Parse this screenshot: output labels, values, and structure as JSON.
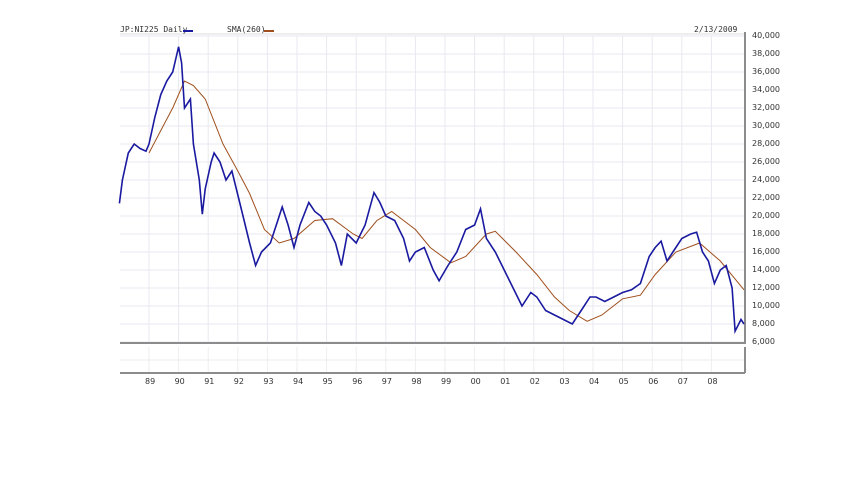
{
  "header": {
    "symbol_label": "JP:NI225 Daily",
    "sma_label": "SMA(260)",
    "date_label": "2/13/2009"
  },
  "colors": {
    "price_series": "#1a1aa0",
    "sma_series": "#a0501e",
    "grid": "#e6e6ee",
    "frame": "#8c8c8c"
  },
  "y_axis": {
    "labels": [
      "40,000",
      "38,000",
      "36,000",
      "34,000",
      "32,000",
      "30,000",
      "28,000",
      "26,000",
      "24,000",
      "22,000",
      "20,000",
      "18,000",
      "16,000",
      "14,000",
      "12,000",
      "10,000",
      "8,000",
      "6,000"
    ]
  },
  "x_axis": {
    "labels": [
      "89",
      "90",
      "91",
      "92",
      "93",
      "94",
      "95",
      "96",
      "97",
      "98",
      "99",
      "00",
      "01",
      "02",
      "03",
      "04",
      "05",
      "06",
      "07",
      "08"
    ]
  },
  "chart_data": {
    "type": "line",
    "title": "JP:NI225 Daily",
    "date": "2/13/2009",
    "xlabel": "",
    "ylabel": "",
    "ylim": [
      6000,
      40000
    ],
    "xlim": [
      1988.0,
      2009.1
    ],
    "grid": true,
    "legend_position": "top-left",
    "y_ticks": [
      6000,
      8000,
      10000,
      12000,
      14000,
      16000,
      18000,
      20000,
      22000,
      24000,
      26000,
      28000,
      30000,
      32000,
      34000,
      36000,
      38000,
      40000
    ],
    "x_tick_labels": [
      "89",
      "90",
      "91",
      "92",
      "93",
      "94",
      "95",
      "96",
      "97",
      "98",
      "99",
      "00",
      "01",
      "02",
      "03",
      "04",
      "05",
      "06",
      "07",
      "08"
    ],
    "series": [
      {
        "name": "JP:NI225 Daily",
        "color": "#1a1aa0",
        "x": [
          1988.0,
          1988.1,
          1988.3,
          1988.5,
          1988.7,
          1988.9,
          1989.0,
          1989.2,
          1989.4,
          1989.6,
          1989.8,
          1990.0,
          1990.1,
          1990.2,
          1990.4,
          1990.5,
          1990.7,
          1990.8,
          1990.9,
          1991.1,
          1991.2,
          1991.4,
          1991.6,
          1991.8,
          1992.1,
          1992.4,
          1992.6,
          1992.8,
          1993.1,
          1993.3,
          1993.5,
          1993.7,
          1993.9,
          1994.1,
          1994.4,
          1994.6,
          1994.8,
          1995.0,
          1995.3,
          1995.5,
          1995.7,
          1996.0,
          1996.3,
          1996.6,
          1996.8,
          1997.0,
          1997.3,
          1997.6,
          1997.8,
          1998.0,
          1998.3,
          1998.6,
          1998.8,
          1999.1,
          1999.4,
          1999.7,
          2000.0,
          2000.2,
          2000.4,
          2000.7,
          2001.0,
          2001.3,
          2001.6,
          2001.9,
          2002.1,
          2002.4,
          2002.7,
          2003.0,
          2003.3,
          2003.6,
          2003.9,
          2004.1,
          2004.4,
          2004.7,
          2005.0,
          2005.3,
          2005.6,
          2005.9,
          2006.1,
          2006.3,
          2006.5,
          2006.7,
          2007.0,
          2007.3,
          2007.5,
          2007.7,
          2007.9,
          2008.1,
          2008.3,
          2008.5,
          2008.7,
          2008.8,
          2009.0,
          2009.1
        ],
        "values": [
          21400,
          24000,
          27000,
          28000,
          27500,
          27200,
          28000,
          31000,
          33500,
          35000,
          36000,
          38800,
          37000,
          32000,
          33000,
          28000,
          24000,
          20200,
          23000,
          26000,
          27000,
          26000,
          24000,
          25000,
          21000,
          17000,
          14500,
          16000,
          17000,
          19000,
          21000,
          19000,
          16500,
          19000,
          21500,
          20500,
          20000,
          19000,
          17000,
          14500,
          18000,
          17000,
          19000,
          22600,
          21500,
          20000,
          19500,
          17500,
          15000,
          16000,
          16500,
          14000,
          12800,
          14500,
          16000,
          18500,
          19000,
          20800,
          17500,
          16000,
          14000,
          12000,
          10000,
          11500,
          11000,
          9500,
          9000,
          8500,
          8000,
          9500,
          11000,
          11000,
          10500,
          11000,
          11500,
          11800,
          12500,
          15500,
          16500,
          17200,
          15000,
          16000,
          17500,
          18000,
          18200,
          16000,
          15000,
          12500,
          14000,
          14500,
          12000,
          7200,
          8500,
          8000
        ]
      },
      {
        "name": "SMA(260)",
        "color": "#a0501e",
        "x": [
          1989.0,
          1989.4,
          1989.8,
          1990.2,
          1990.5,
          1990.9,
          1991.5,
          1992.0,
          1992.4,
          1992.9,
          1993.4,
          1993.9,
          1994.6,
          1995.2,
          1995.9,
          1996.2,
          1996.7,
          1997.2,
          1998.0,
          1998.5,
          1999.2,
          1999.7,
          2000.4,
          2000.7,
          2001.4,
          2002.1,
          2002.7,
          2003.2,
          2003.8,
          2004.3,
          2005.0,
          2005.6,
          2006.1,
          2006.8,
          2007.6,
          2008.3,
          2009.1
        ],
        "values": [
          27000,
          29500,
          32000,
          35000,
          34500,
          33000,
          28000,
          25000,
          22500,
          18500,
          17000,
          17500,
          19500,
          19700,
          18000,
          17500,
          19500,
          20500,
          18500,
          16500,
          14800,
          15500,
          18000,
          18300,
          16000,
          13500,
          11000,
          9500,
          8300,
          9000,
          10800,
          11200,
          13500,
          16000,
          17000,
          15000,
          11800
        ]
      }
    ]
  }
}
